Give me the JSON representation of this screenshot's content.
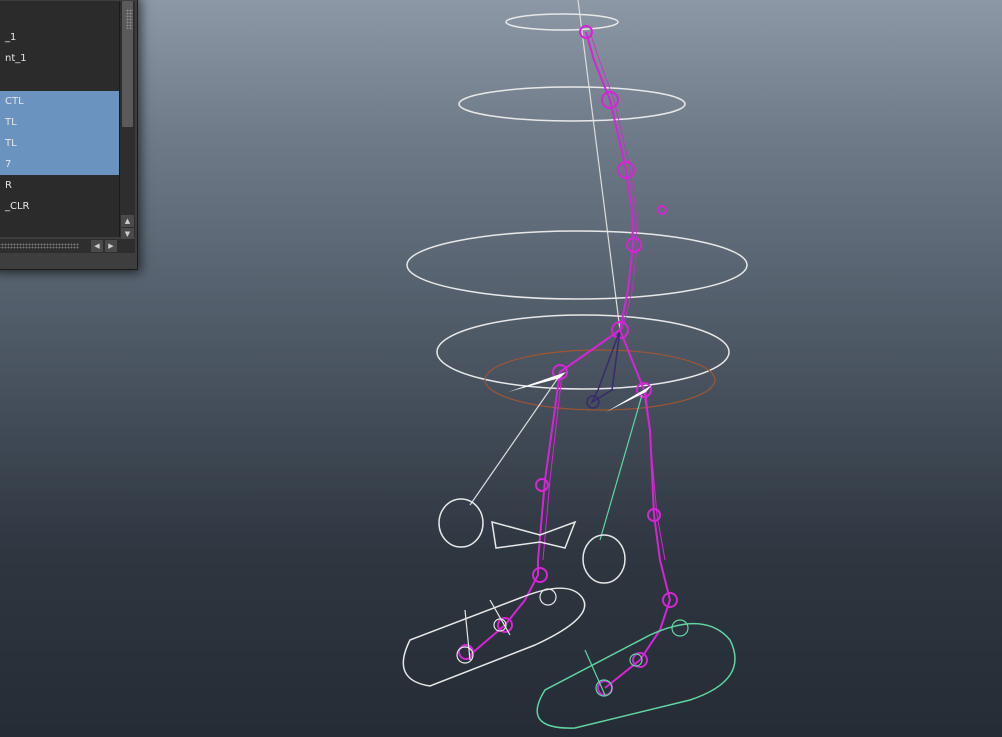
{
  "outliner": {
    "items": [
      {
        "label": "_1",
        "selected": false
      },
      {
        "label": "nt_1",
        "selected": false
      },
      {
        "label": "",
        "selected": false
      },
      {
        "label": "CTL",
        "selected": true
      },
      {
        "label": "TL",
        "selected": true
      },
      {
        "label": "TL",
        "selected": true
      },
      {
        "label": "7",
        "selected": true
      },
      {
        "label": "R",
        "selected": false
      },
      {
        "label": "_CLR",
        "selected": false
      }
    ],
    "scroll_up_glyph": "▲",
    "scroll_down_glyph": "▼",
    "scroll_left_glyph": "◀",
    "scroll_right_glyph": "▶"
  },
  "colors": {
    "joint": "#d426d4",
    "control": "#e8e8e8",
    "control_secondary": "#5fd6a0",
    "hip_ring": "#a0552f",
    "selection": "#6b93bf"
  }
}
